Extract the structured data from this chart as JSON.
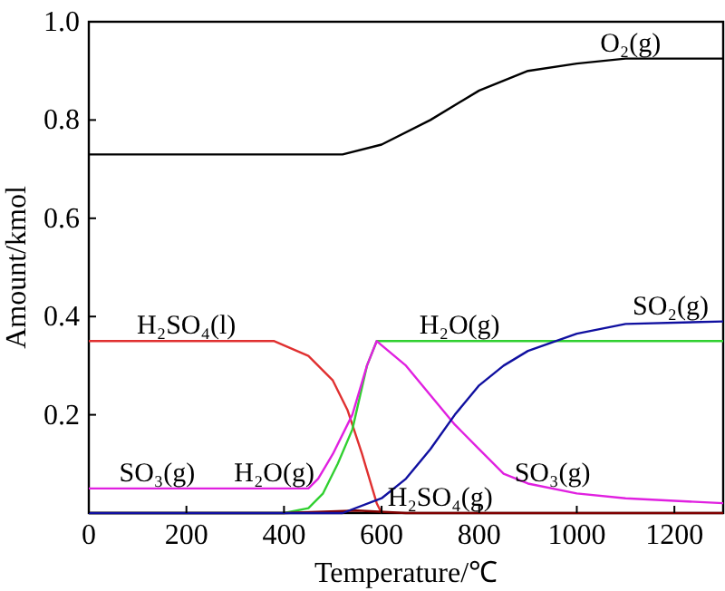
{
  "chart_data": {
    "type": "line",
    "xlabel": "Temperature/℃",
    "ylabel": "Amount/kmol",
    "xlim": [
      0,
      1300
    ],
    "ylim": [
      0,
      1
    ],
    "xticks": [
      0,
      200,
      400,
      600,
      800,
      1000,
      1200
    ],
    "yticks": [
      {
        "value": 0.2,
        "label": "0.2"
      },
      {
        "value": 0.4,
        "label": "0.4"
      },
      {
        "value": 0.6,
        "label": "0.6"
      },
      {
        "value": 0.8,
        "label": "0.8"
      },
      {
        "value": 1,
        "label": "1.0"
      }
    ],
    "grid": false,
    "marker": "none",
    "line_style": "solid",
    "series": [
      {
        "color": "#000000",
        "x": [
          0,
          520,
          600,
          700,
          800,
          900,
          1000,
          1100,
          1300
        ],
        "values": [
          0.73,
          0.73,
          0.75,
          0.8,
          0.86,
          0.9,
          0.915,
          0.925,
          0.925
        ]
      },
      {
        "color": "#e03030",
        "x": [
          0,
          380,
          450,
          500,
          530,
          560,
          590,
          600
        ],
        "values": [
          0.35,
          0.35,
          0.32,
          0.27,
          0.21,
          0.12,
          0.02,
          0
        ]
      },
      {
        "color": "#30d030",
        "x": [
          0,
          400,
          450,
          480,
          510,
          540,
          570,
          590,
          1300
        ],
        "values": [
          0,
          0,
          0.01,
          0.04,
          0.1,
          0.17,
          0.3,
          0.35,
          0.35
        ]
      },
      {
        "color": "#e020e0",
        "x": [
          0,
          450,
          470,
          500,
          540,
          570,
          590,
          650,
          700,
          750,
          800,
          850,
          900,
          1000,
          1100,
          1200,
          1300
        ],
        "values": [
          0.05,
          0.05,
          0.07,
          0.12,
          0.2,
          0.3,
          0.35,
          0.3,
          0.24,
          0.18,
          0.13,
          0.08,
          0.06,
          0.04,
          0.03,
          0.025,
          0.02
        ]
      },
      {
        "color": "#800000",
        "x": [
          0,
          400,
          550,
          650,
          1300
        ],
        "values": [
          0,
          0,
          0.005,
          0,
          0
        ]
      },
      {
        "color": "#1010a0",
        "x": [
          0,
          520,
          600,
          650,
          700,
          750,
          800,
          850,
          900,
          1000,
          1100,
          1300
        ],
        "values": [
          0,
          0,
          0.03,
          0.07,
          0.13,
          0.2,
          0.26,
          0.3,
          0.33,
          0.365,
          0.385,
          0.39
        ]
      }
    ],
    "annotations": [
      {
        "text": "O₂(g)",
        "x": 1110,
        "y": 0.925
      },
      {
        "text": "H₂SO₄(l)",
        "x": 200,
        "y": 0.35
      },
      {
        "text": "H₂O(g)",
        "x": 760,
        "y": 0.35
      },
      {
        "text": "SO₂(g)",
        "x": 1200,
        "y": 0.39
      },
      {
        "text": "SO₃(g)",
        "x": 140,
        "y": 0.05
      },
      {
        "text": "H₂O(g)",
        "x": 380,
        "y": 0.05
      },
      {
        "text": "H₂SO₄(g)",
        "x": 720,
        "y": 0
      },
      {
        "text": "SO₃(g)",
        "x": 950,
        "y": 0.05
      }
    ]
  }
}
